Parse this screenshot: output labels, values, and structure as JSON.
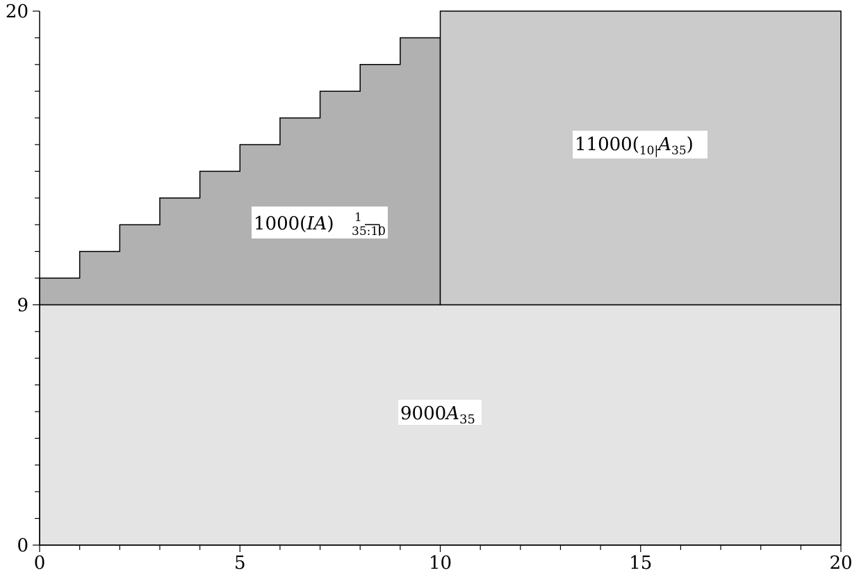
{
  "chart_data": {
    "type": "area",
    "title": "",
    "xlabel": "",
    "ylabel": "",
    "xlim": [
      0,
      20
    ],
    "ylim": [
      0,
      20
    ],
    "grid": false,
    "x_major_ticks": [
      0,
      5,
      10,
      15,
      20
    ],
    "y_major_ticks": [
      0,
      9,
      20
    ],
    "x_minor_step": 1,
    "y_minor_step": 1,
    "colors": {
      "base": "#e4e4e4",
      "increasing": "#b1b1b1",
      "deferred": "#cbcbcb",
      "outline": "#000000"
    },
    "regions": [
      {
        "id": "base",
        "label": "9000A35",
        "x": [
          0,
          20
        ],
        "y_bottom": 0,
        "y_top": 9
      },
      {
        "id": "increasing",
        "label": "1000(IA)1 35:10",
        "step_x": [
          0,
          1,
          2,
          3,
          4,
          5,
          6,
          7,
          8,
          9,
          10
        ],
        "step_top": [
          10,
          11,
          12,
          13,
          14,
          15,
          16,
          17,
          18,
          19
        ],
        "y_bottom": 9
      },
      {
        "id": "deferred",
        "label": "11000(10|A35)",
        "x": [
          10,
          20
        ],
        "y_bottom": 9,
        "y_top": 20
      }
    ]
  },
  "labels": {
    "base": {
      "pre": "9000",
      "A": "A",
      "sub": "35"
    },
    "increasing": {
      "pre": "1000(",
      "IA": "IA",
      "close": ")",
      "sup": "1",
      "sub1": "35:",
      "sub2": "10"
    },
    "deferred": {
      "pre": "11000(",
      "sub": "10|",
      "A": "A",
      "sub2": "35",
      "close": ")"
    }
  }
}
